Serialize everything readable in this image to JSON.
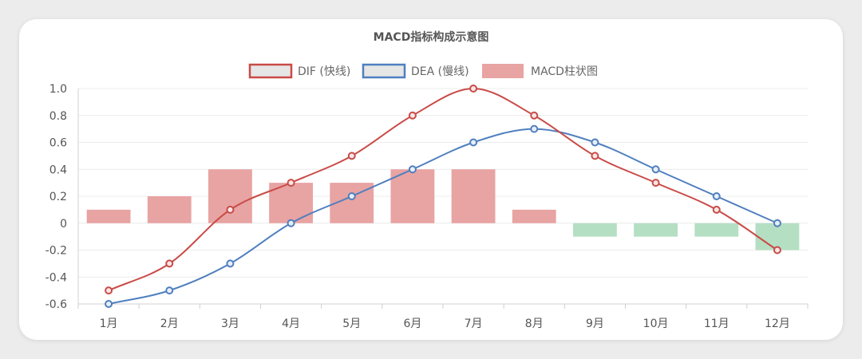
{
  "colors": {
    "dif": "#c94b47",
    "dea": "#4f7fbf",
    "bar_positive": "#e8a3a3",
    "bar_negative": "#b5dfc2"
  },
  "chart_data": {
    "type": "bar",
    "title": "MACD指标构成示意图",
    "categories": [
      "1月",
      "2月",
      "3月",
      "4月",
      "5月",
      "6月",
      "7月",
      "8月",
      "9月",
      "10月",
      "11月",
      "12月"
    ],
    "series": [
      {
        "name": "DIF (快线)",
        "type": "line",
        "values": [
          -0.5,
          -0.3,
          0.1,
          0.3,
          0.5,
          0.8,
          1.0,
          0.8,
          0.5,
          0.3,
          0.1,
          -0.2
        ]
      },
      {
        "name": "DEA (慢线)",
        "type": "line",
        "values": [
          -0.6,
          -0.5,
          -0.3,
          0.0,
          0.2,
          0.4,
          0.6,
          0.7,
          0.6,
          0.4,
          0.2,
          0.0
        ]
      },
      {
        "name": "MACD柱状图",
        "type": "bar",
        "values": [
          0.1,
          0.2,
          0.4,
          0.3,
          0.3,
          0.4,
          0.4,
          0.1,
          -0.1,
          -0.1,
          -0.1,
          -0.2
        ]
      }
    ],
    "yticks": [
      "1.0",
      "0.8",
      "0.6",
      "0.4",
      "0.2",
      "0",
      "-0.2",
      "-0.4",
      "-0.6"
    ],
    "ylim": [
      -0.6,
      1.0
    ],
    "grid": true,
    "legend_position": "top"
  }
}
